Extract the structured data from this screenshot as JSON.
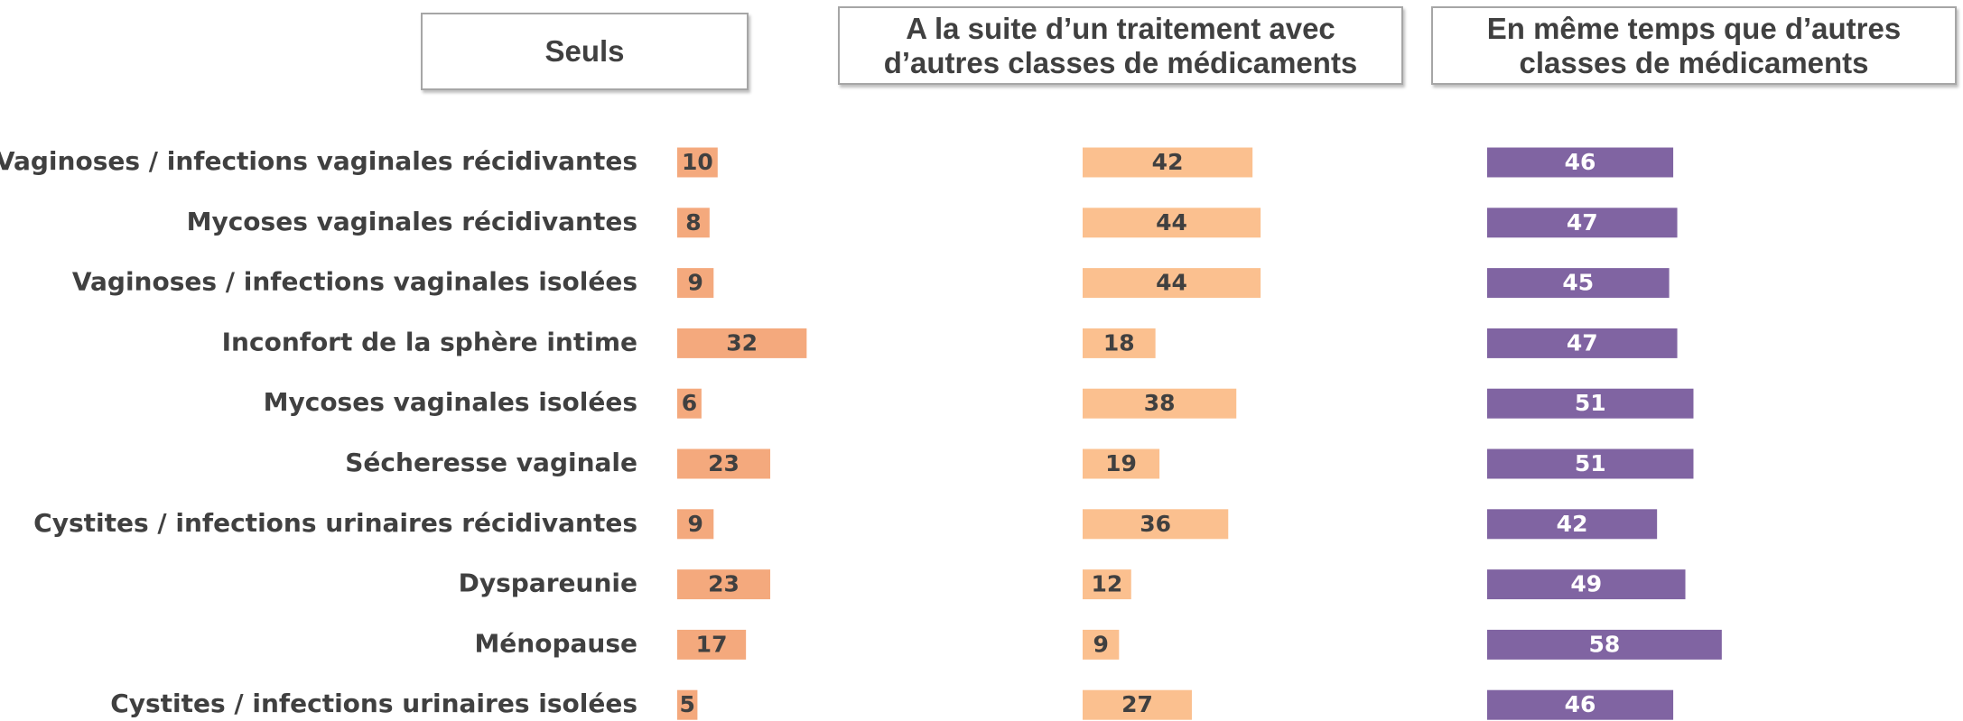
{
  "chart_data": {
    "type": "bar",
    "orientation": "horizontal",
    "categories": [
      "Vaginoses / infections vaginales récidivantes",
      "Mycoses vaginales récidivantes",
      "Vaginoses / infections vaginales isolées",
      "Inconfort de la sphère intime",
      "Mycoses vaginales isolées",
      "Sécheresse vaginale",
      "Cystites / infections urinaires récidivantes",
      "Dyspareunie",
      "Ménopause",
      "Cystites / infections urinaires isolées"
    ],
    "series": [
      {
        "name": "Seuls",
        "color": "#f4a97d",
        "values": [
          10,
          8,
          9,
          32,
          6,
          23,
          9,
          23,
          17,
          5
        ]
      },
      {
        "name": "A la suite d’un traitement avec d’autres classes de médicaments",
        "color": "#fbc08f",
        "values": [
          42,
          44,
          44,
          18,
          38,
          19,
          36,
          12,
          9,
          27
        ]
      },
      {
        "name": "En même temps que d’autres classes de médicaments",
        "color": "#8064a2",
        "values": [
          46,
          47,
          45,
          47,
          51,
          51,
          42,
          49,
          58,
          46
        ]
      }
    ]
  }
}
